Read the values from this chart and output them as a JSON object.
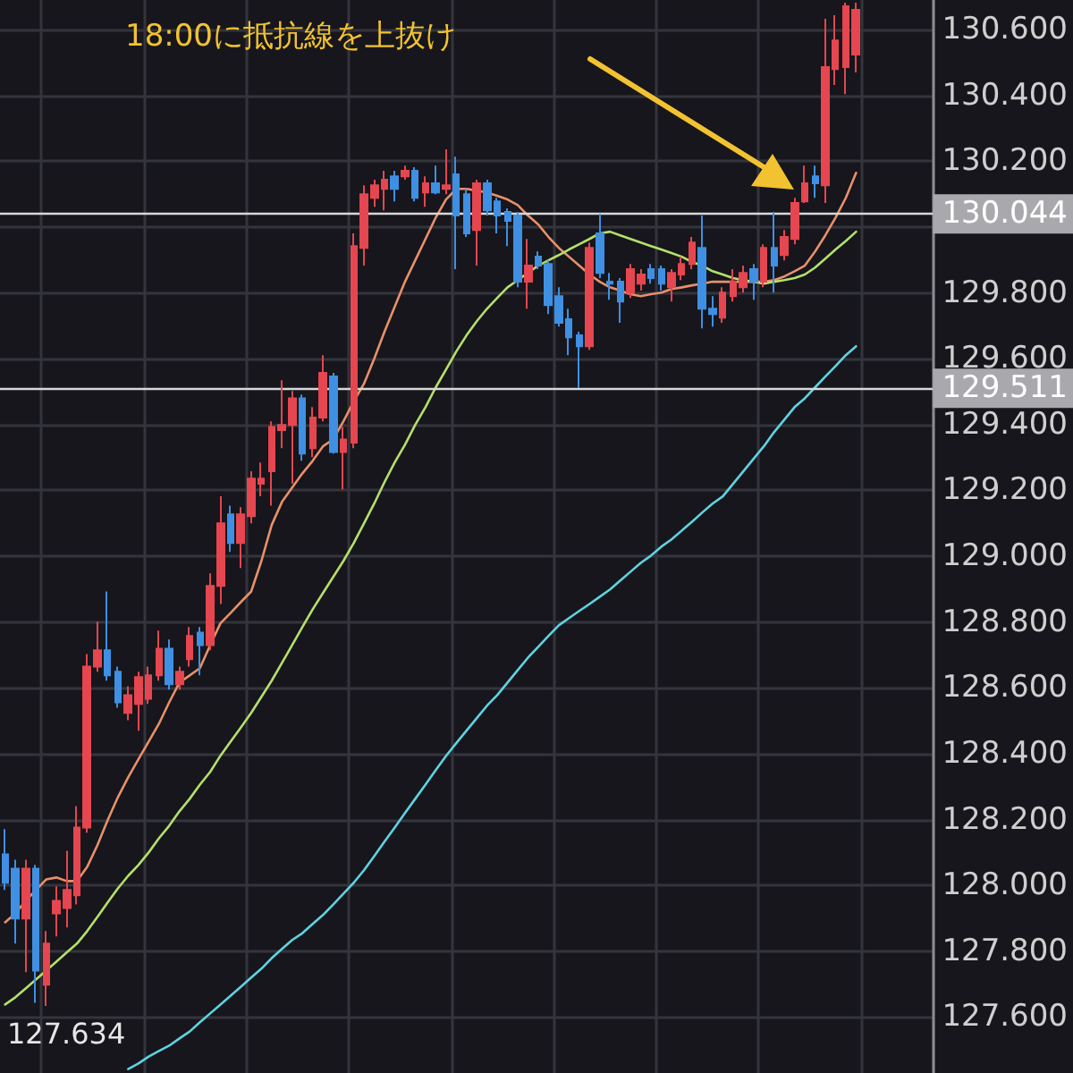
{
  "chart_data": {
    "type": "candlestick",
    "categories": [
      null,
      null,
      null,
      null,
      null,
      null,
      null,
      null,
      null,
      null,
      null,
      null,
      null,
      null,
      null,
      null,
      null,
      null,
      null,
      null,
      null,
      null,
      null,
      null,
      null,
      null,
      null,
      null,
      null,
      null,
      null,
      null,
      null,
      null,
      null,
      null,
      null,
      null,
      null,
      null,
      null,
      null,
      null,
      null,
      null,
      null,
      null,
      null,
      null,
      null,
      null,
      null,
      null,
      null,
      null,
      null,
      null,
      null,
      null,
      null,
      null,
      null,
      null,
      null,
      null,
      null,
      null,
      null,
      null,
      null,
      null,
      null,
      null,
      null,
      null,
      null,
      null,
      null,
      null,
      null,
      null,
      null,
      null,
      null
    ],
    "ohlc": [
      [
        128.094,
        128.171,
        127.986,
        128.008
      ],
      [
        128.051,
        128.078,
        127.823,
        127.899
      ],
      [
        127.899,
        128.078,
        127.736,
        128.051
      ],
      [
        128.051,
        128.062,
        127.643,
        127.741
      ],
      [
        127.698,
        127.861,
        127.634,
        127.823
      ],
      [
        127.915,
        127.997,
        127.845,
        127.953
      ],
      [
        127.931,
        128.105,
        127.872,
        127.986
      ],
      [
        127.97,
        128.241,
        127.942,
        128.176
      ],
      [
        128.176,
        128.703,
        128.16,
        128.665
      ],
      [
        128.665,
        128.801,
        128.649,
        128.714
      ],
      [
        128.714,
        128.893,
        128.622,
        128.638
      ],
      [
        128.649,
        128.665,
        128.54,
        128.556
      ],
      [
        128.524,
        128.605,
        128.502,
        128.578
      ],
      [
        128.551,
        128.649,
        128.47,
        128.633
      ],
      [
        128.567,
        128.665,
        128.551,
        128.638
      ],
      [
        128.638,
        128.774,
        128.622,
        128.719
      ],
      [
        128.719,
        128.747,
        128.595,
        128.611
      ],
      [
        128.611,
        128.665,
        128.595,
        128.649
      ],
      [
        128.687,
        128.785,
        128.665,
        128.758
      ],
      [
        128.768,
        128.785,
        128.638,
        128.73
      ],
      [
        128.73,
        128.948,
        128.714,
        128.91
      ],
      [
        128.91,
        129.182,
        128.855,
        129.1
      ],
      [
        129.127,
        129.154,
        129.013,
        129.04
      ],
      [
        129.04,
        129.149,
        128.964,
        129.127
      ],
      [
        129.122,
        129.258,
        129.1,
        129.236
      ],
      [
        129.22,
        129.285,
        129.182,
        129.236
      ],
      [
        129.258,
        129.41,
        129.154,
        129.393
      ],
      [
        129.383,
        129.535,
        129.328,
        129.399
      ],
      [
        129.399,
        129.502,
        129.22,
        129.48
      ],
      [
        129.48,
        129.491,
        129.29,
        129.312
      ],
      [
        129.328,
        129.453,
        129.301,
        129.421
      ],
      [
        129.421,
        129.611,
        129.41,
        129.557
      ],
      [
        129.546,
        129.557,
        129.312,
        129.317
      ],
      [
        129.317,
        129.393,
        129.203,
        129.355
      ],
      [
        129.345,
        129.981,
        129.328,
        129.942
      ],
      [
        129.937,
        130.127,
        129.883,
        130.1
      ],
      [
        130.089,
        130.144,
        130.062,
        130.127
      ],
      [
        130.116,
        130.171,
        130.051,
        130.144
      ],
      [
        130.154,
        130.171,
        130.078,
        130.116
      ],
      [
        130.154,
        130.187,
        130.144,
        130.171
      ],
      [
        130.171,
        130.182,
        130.078,
        130.089
      ],
      [
        130.105,
        130.154,
        130.062,
        130.133
      ],
      [
        130.133,
        130.187,
        130.1,
        130.105
      ],
      [
        130.116,
        130.236,
        130.1,
        130.127
      ],
      [
        130.16,
        130.214,
        129.872,
        130.035
      ],
      [
        130.1,
        130.116,
        129.97,
        129.981
      ],
      [
        129.991,
        130.144,
        129.883,
        130.133
      ],
      [
        130.133,
        130.144,
        130.035,
        130.051
      ],
      [
        130.078,
        130.089,
        129.981,
        130.035
      ],
      [
        130.046,
        130.057,
        129.942,
        130.019
      ],
      [
        130.035,
        130.046,
        129.817,
        129.834
      ],
      [
        129.834,
        129.964,
        129.752,
        129.883
      ],
      [
        129.91,
        129.926,
        129.872,
        129.883
      ],
      [
        129.888,
        129.899,
        129.736,
        129.763
      ],
      [
        129.79,
        129.817,
        129.698,
        129.709
      ],
      [
        129.72,
        129.752,
        129.611,
        129.665
      ],
      [
        129.671,
        129.682,
        129.511,
        129.638
      ],
      [
        129.638,
        129.953,
        129.627,
        129.937
      ],
      [
        129.981,
        130.04,
        129.845,
        129.861
      ],
      [
        129.834,
        129.861,
        129.779,
        129.828
      ],
      [
        129.834,
        129.845,
        129.709,
        129.774
      ],
      [
        129.801,
        129.888,
        129.785,
        129.872
      ],
      [
        129.828,
        129.872,
        129.807,
        129.856
      ],
      [
        129.872,
        129.888,
        129.828,
        129.845
      ],
      [
        129.872,
        129.883,
        129.807,
        129.828
      ],
      [
        129.817,
        129.872,
        129.774,
        129.861
      ],
      [
        129.856,
        129.91,
        129.839,
        129.888
      ],
      [
        129.888,
        129.97,
        129.872,
        129.953
      ],
      [
        129.937,
        130.035,
        129.692,
        129.752
      ],
      [
        129.752,
        129.79,
        129.698,
        129.736
      ],
      [
        129.725,
        129.817,
        129.709,
        129.801
      ],
      [
        129.79,
        129.872,
        129.774,
        129.834
      ],
      [
        129.817,
        129.883,
        129.801,
        129.861
      ],
      [
        129.872,
        129.888,
        129.779,
        129.834
      ],
      [
        129.834,
        129.948,
        129.817,
        129.937
      ],
      [
        129.937,
        130.046,
        129.801,
        129.883
      ],
      [
        129.915,
        129.991,
        129.899,
        129.97
      ],
      [
        129.964,
        130.089,
        129.948,
        130.073
      ],
      [
        130.078,
        130.187,
        130.073,
        130.133
      ],
      [
        130.154,
        130.187,
        130.089,
        130.133
      ],
      [
        130.127,
        130.633,
        130.073,
        130.486
      ],
      [
        130.48,
        130.644,
        130.432,
        130.567
      ],
      [
        130.486,
        130.682,
        130.404,
        130.671
      ],
      [
        130.524,
        130.682,
        130.47,
        130.66
      ]
    ],
    "series": [
      {
        "type": "line",
        "color": "#e8906a",
        "values": [
          127.888,
          127.915,
          127.953,
          127.986,
          128.018,
          128.024,
          128.013,
          128.013,
          128.056,
          128.122,
          128.198,
          128.268,
          128.328,
          128.383,
          128.437,
          128.491,
          128.556,
          128.616,
          128.638,
          128.66,
          128.73,
          128.796,
          128.828,
          128.861,
          128.893,
          128.986,
          129.095,
          129.165,
          129.209,
          129.252,
          129.29,
          129.334,
          129.355,
          129.41,
          129.47,
          129.524,
          129.6,
          129.682,
          129.758,
          129.834,
          129.899,
          129.964,
          130.029,
          130.084,
          130.116,
          130.116,
          130.111,
          130.105,
          130.095,
          130.084,
          130.067,
          130.035,
          130.008,
          129.97,
          129.937,
          129.91,
          129.883,
          129.856,
          129.834,
          129.817,
          129.807,
          129.796,
          129.79,
          129.796,
          129.801,
          129.812,
          129.817,
          129.823,
          129.828,
          129.834,
          129.834,
          129.834,
          129.834,
          129.834,
          129.834,
          129.839,
          129.85,
          129.866,
          129.883,
          129.926,
          129.975,
          130.029,
          130.089,
          130.165
        ]
      },
      {
        "type": "line",
        "color": "#b5e06a",
        "values": [
          127.638,
          127.66,
          127.687,
          127.714,
          127.741,
          127.768,
          127.796,
          127.823,
          127.861,
          127.904,
          127.948,
          127.991,
          128.029,
          128.062,
          128.1,
          128.143,
          128.181,
          128.225,
          128.263,
          128.306,
          128.345,
          128.394,
          128.437,
          128.48,
          128.524,
          128.573,
          128.622,
          128.676,
          128.73,
          128.785,
          128.839,
          128.888,
          128.937,
          128.986,
          129.04,
          129.1,
          129.16,
          129.225,
          129.285,
          129.339,
          129.399,
          129.453,
          129.513,
          129.567,
          129.622,
          129.671,
          129.714,
          129.752,
          129.785,
          129.817,
          129.839,
          129.861,
          129.883,
          129.899,
          129.915,
          129.932,
          129.948,
          129.964,
          129.981,
          129.986,
          129.975,
          129.964,
          129.953,
          129.942,
          129.932,
          129.921,
          129.91,
          129.894,
          129.883,
          129.866,
          129.856,
          129.845,
          129.839,
          129.834,
          129.828,
          129.834,
          129.839,
          129.845,
          129.856,
          129.877,
          129.904,
          129.932,
          129.958,
          129.986
        ]
      },
      {
        "type": "line",
        "color": "#5fd3e0",
        "values": [
          null,
          null,
          null,
          null,
          null,
          null,
          null,
          null,
          null,
          null,
          null,
          null,
          127.442,
          127.459,
          127.48,
          127.497,
          127.513,
          127.535,
          127.556,
          127.584,
          127.611,
          127.638,
          127.665,
          127.692,
          127.72,
          127.747,
          127.779,
          127.807,
          127.834,
          127.855,
          127.883,
          127.91,
          127.942,
          127.975,
          128.008,
          128.046,
          128.089,
          128.133,
          128.176,
          128.22,
          128.263,
          128.306,
          128.35,
          128.393,
          128.432,
          128.47,
          128.508,
          128.546,
          128.578,
          128.616,
          128.654,
          128.692,
          128.725,
          128.758,
          128.79,
          128.812,
          128.834,
          128.855,
          128.877,
          128.899,
          128.926,
          128.953,
          128.98,
          129.002,
          129.029,
          129.051,
          129.078,
          129.105,
          129.133,
          129.16,
          129.182,
          129.22,
          129.258,
          129.296,
          129.334,
          129.377,
          129.415,
          129.453,
          129.48,
          129.513,
          129.546,
          129.578,
          129.611,
          129.638
        ]
      }
    ],
    "ylim": [
      127.43,
      130.69
    ],
    "yticks": [
      {
        "value": 127.6,
        "label": "127.600"
      },
      {
        "value": 127.8,
        "label": "127.800"
      },
      {
        "value": 128,
        "label": "128.000"
      },
      {
        "value": 128.2,
        "label": "128.200"
      },
      {
        "value": 128.4,
        "label": "128.400"
      },
      {
        "value": 128.6,
        "label": "128.600"
      },
      {
        "value": 128.8,
        "label": "128.800"
      },
      {
        "value": 129,
        "label": "129.000"
      },
      {
        "value": 129.2,
        "label": "129.200"
      },
      {
        "value": 129.4,
        "label": "129.400"
      },
      {
        "value": 129.6,
        "label": "129.600"
      },
      {
        "value": 129.8,
        "label": "129.800"
      },
      {
        "value": 130,
        "label": null
      },
      {
        "value": 130.2,
        "label": "130.200"
      },
      {
        "value": 130.4,
        "label": "130.400"
      },
      {
        "value": 130.6,
        "label": "130.600"
      }
    ],
    "ref_lines": [
      {
        "axis": "y",
        "value": 130.044,
        "label": "130.044",
        "color": "#d8d8d8"
      },
      {
        "axis": "y",
        "value": 129.511,
        "label": "129.511",
        "color": "#d8d8d8"
      }
    ],
    "annotations": [
      "18:00に抵抗線を上抜け",
      "127.634"
    ],
    "grid": true,
    "tick_labels": "y",
    "line_style": "solid"
  }
}
